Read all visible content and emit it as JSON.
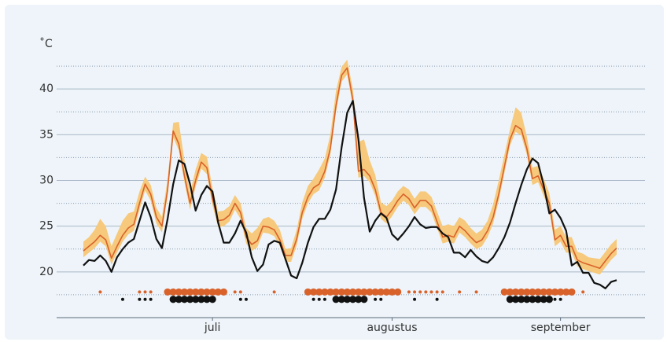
{
  "chart_data": {
    "type": "line",
    "y_label": "˚C",
    "categories": [
      null,
      null,
      null,
      null,
      null,
      null,
      null,
      null,
      null,
      null,
      null,
      null,
      null,
      null,
      null,
      null,
      null,
      null,
      null,
      null,
      null,
      null,
      null,
      "juli",
      null,
      null,
      null,
      null,
      null,
      null,
      null,
      null,
      null,
      null,
      null,
      null,
      null,
      null,
      null,
      null,
      null,
      null,
      null,
      null,
      null,
      null,
      null,
      null,
      null,
      null,
      null,
      null,
      null,
      null,
      null,
      "augustus",
      null,
      null,
      null,
      null,
      null,
      null,
      null,
      null,
      null,
      null,
      null,
      null,
      null,
      null,
      null,
      null,
      null,
      null,
      null,
      null,
      null,
      null,
      null,
      null,
      null,
      null,
      null,
      null,
      null,
      "september",
      null,
      null,
      null,
      null,
      null,
      null,
      null,
      null,
      null,
      null
    ],
    "ylim": [
      15,
      45
    ],
    "yticks": [
      20,
      25,
      30,
      35,
      40
    ],
    "yminor": [
      17.5,
      22.5,
      27.5,
      32.5,
      37.5,
      42.5
    ],
    "grid": true,
    "band": {
      "color": "#f6c97c",
      "low": [
        21.6,
        22.1,
        22.6,
        23.3,
        22.8,
        20.8,
        22.1,
        23.3,
        24.1,
        24.5,
        26.8,
        28.9,
        27.8,
        25.3,
        24.3,
        28.3,
        34.7,
        33.3,
        29.8,
        26.8,
        29.3,
        31.3,
        30.7,
        27.3,
        24.9,
        25.0,
        25.5,
        26.8,
        25.8,
        23.1,
        22.3,
        22.7,
        24.3,
        24.2,
        23.9,
        22.8,
        21.1,
        21.1,
        22.9,
        25.8,
        27.5,
        28.5,
        28.9,
        30.3,
        32.8,
        37.5,
        40.8,
        41.6,
        38.1,
        30.3,
        30.5,
        29.8,
        28.3,
        25.8,
        25.3,
        26.1,
        27.1,
        27.8,
        27.3,
        26.3,
        27.1,
        27.1,
        26.5,
        24.8,
        23.1,
        23.3,
        23.1,
        24.3,
        23.8,
        23.1,
        22.5,
        22.8,
        23.8,
        25.3,
        27.8,
        30.8,
        33.8,
        35.3,
        34.9,
        32.8,
        29.5,
        29.8,
        28.3,
        26.8,
        22.8,
        23.3,
        22.1,
        22.1,
        20.6,
        20.3,
        20.1,
        19.9,
        19.7,
        20.5,
        21.3,
        21.9
      ],
      "high": [
        23.3,
        23.8,
        24.6,
        25.8,
        25.0,
        22.8,
        24.2,
        25.6,
        26.4,
        26.6,
        28.8,
        30.4,
        29.5,
        27.0,
        26.0,
        30.2,
        36.3,
        36.4,
        32.2,
        28.6,
        31.2,
        33.0,
        32.6,
        29.2,
        26.6,
        26.7,
        27.2,
        28.4,
        27.5,
        24.8,
        24.2,
        24.8,
        25.8,
        26.0,
        25.6,
        24.6,
        22.5,
        22.6,
        24.6,
        27.6,
        29.4,
        30.2,
        31.2,
        32.4,
        35.0,
        39.8,
        42.4,
        43.2,
        40.0,
        34.2,
        34.5,
        32.2,
        30.6,
        27.6,
        27.2,
        27.8,
        28.8,
        29.4,
        29.0,
        28.0,
        28.8,
        28.8,
        28.2,
        26.6,
        25.0,
        25.2,
        25.0,
        26.0,
        25.6,
        24.8,
        24.2,
        24.6,
        25.6,
        27.4,
        30.0,
        32.8,
        35.6,
        38.0,
        37.4,
        34.8,
        31.4,
        31.6,
        30.2,
        28.6,
        24.6,
        25.0,
        23.8,
        23.8,
        22.2,
        22.0,
        21.6,
        21.5,
        21.4,
        22.2,
        23.0,
        23.6
      ]
    },
    "series": [
      {
        "color": "#d9622b",
        "width": 1.6,
        "values": [
          22.3,
          22.8,
          23.3,
          24.0,
          23.5,
          21.5,
          22.8,
          24.0,
          24.8,
          25.2,
          27.5,
          29.6,
          28.5,
          26.0,
          25.0,
          29.0,
          35.4,
          34.0,
          30.5,
          27.5,
          30.0,
          32.0,
          31.4,
          28.0,
          25.6,
          25.7,
          26.2,
          27.5,
          26.5,
          23.8,
          23.0,
          23.4,
          25.0,
          24.9,
          24.6,
          23.5,
          21.8,
          21.8,
          23.6,
          26.5,
          28.2,
          29.2,
          29.6,
          31.0,
          33.5,
          38.2,
          41.5,
          42.3,
          38.8,
          31.0,
          31.2,
          30.5,
          29.0,
          26.5,
          26.0,
          26.8,
          27.8,
          28.5,
          28.0,
          27.0,
          27.8,
          27.8,
          27.2,
          25.5,
          23.8,
          24.0,
          23.8,
          25.0,
          24.5,
          23.8,
          23.2,
          23.5,
          24.5,
          26.0,
          28.5,
          31.5,
          34.5,
          36.0,
          35.6,
          33.5,
          30.2,
          30.5,
          29.0,
          27.5,
          23.5,
          24.0,
          22.8,
          22.8,
          21.3,
          21.0,
          20.8,
          20.6,
          20.4,
          21.2,
          22.0,
          22.6
        ]
      },
      {
        "color": "#111111",
        "width": 2.2,
        "values": [
          20.7,
          21.3,
          21.2,
          21.8,
          21.2,
          20.0,
          21.6,
          22.5,
          23.2,
          23.6,
          25.6,
          27.6,
          26.0,
          23.6,
          22.6,
          25.8,
          29.6,
          32.2,
          31.8,
          29.6,
          26.7,
          28.4,
          29.4,
          28.8,
          25.4,
          23.2,
          23.2,
          24.2,
          25.6,
          24.3,
          21.6,
          20.1,
          20.8,
          23.0,
          23.4,
          23.2,
          21.4,
          19.6,
          19.3,
          21.0,
          23.2,
          24.9,
          25.8,
          25.8,
          26.8,
          29.0,
          33.6,
          37.4,
          38.7,
          34.5,
          28.1,
          24.4,
          25.6,
          26.4,
          25.9,
          24.1,
          23.5,
          24.2,
          25.0,
          26.0,
          25.2,
          24.8,
          24.9,
          24.9,
          24.2,
          23.8,
          22.1,
          22.1,
          21.6,
          22.4,
          21.7,
          21.2,
          21.0,
          21.6,
          22.6,
          23.8,
          25.4,
          27.5,
          29.5,
          31.2,
          32.4,
          31.9,
          29.5,
          26.4,
          26.8,
          25.9,
          24.5,
          20.7,
          21.1,
          19.9,
          19.9,
          18.8,
          18.6,
          18.2,
          18.9,
          19.1
        ]
      }
    ],
    "dot_rows": [
      {
        "color": "#d9622b",
        "y": 17.8,
        "small": [
          3,
          10,
          11,
          12,
          27,
          28,
          34,
          58,
          59,
          60,
          61,
          62,
          63,
          64,
          67,
          70,
          89
        ],
        "large": [
          15,
          16,
          17,
          18,
          19,
          20,
          21,
          22,
          23,
          24,
          25,
          40,
          41,
          42,
          43,
          44,
          45,
          46,
          47,
          48,
          49,
          50,
          51,
          52,
          53,
          54,
          55,
          56,
          75,
          76,
          77,
          78,
          79,
          80,
          81,
          82,
          83,
          84,
          85,
          86,
          87
        ]
      },
      {
        "color": "#111111",
        "y": 17.0,
        "small": [
          7,
          10,
          11,
          12,
          28,
          29,
          41,
          42,
          43,
          52,
          53,
          59,
          63,
          84,
          85
        ],
        "large": [
          16,
          17,
          18,
          19,
          20,
          21,
          22,
          23,
          45,
          46,
          47,
          48,
          49,
          50,
          76,
          77,
          78,
          79,
          80,
          81,
          82,
          83
        ]
      }
    ]
  }
}
